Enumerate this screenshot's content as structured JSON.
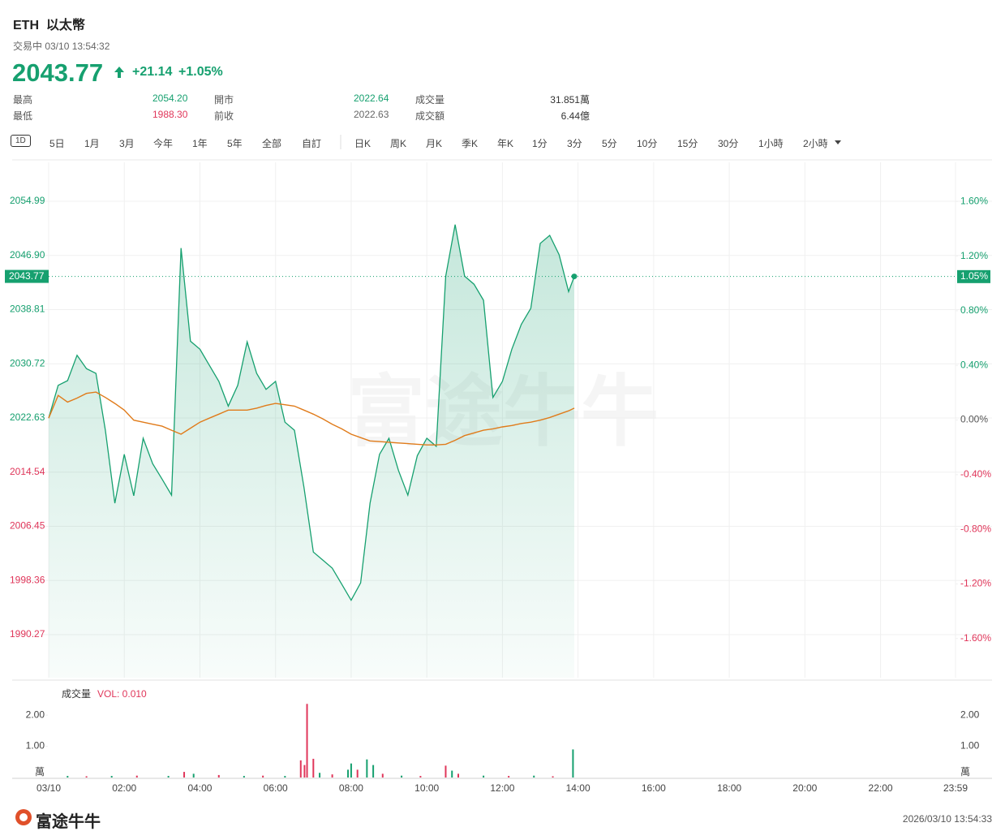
{
  "header": {
    "symbol": "ETH",
    "name": "以太幣",
    "status": "交易中 03/10 13:54:32",
    "price": "2043.77",
    "change": "+21.14",
    "change_pct": "+1.05%",
    "stats": [
      [
        {
          "label": "最高",
          "value": "2054.20"
        },
        {
          "label": "開市",
          "value": "2022.64"
        },
        {
          "label": "成交量",
          "value": "31.851萬"
        }
      ],
      [
        {
          "label": "最低",
          "value": "1988.30"
        },
        {
          "label": "前收",
          "value": "2022.63"
        },
        {
          "label": "成交額",
          "value": "6.44億"
        }
      ]
    ]
  },
  "tabs": [
    "1D",
    "5日",
    "1月",
    "3月",
    "今年",
    "1年",
    "5年",
    "全部",
    "自訂",
    "日K",
    "周K",
    "月K",
    "季K",
    "年K",
    "1分",
    "3分",
    "5分",
    "10分",
    "15分",
    "30分",
    "1小時",
    "2小時"
  ],
  "chart_data": [
    {
      "type": "line",
      "watermark": "富途牛牛",
      "grid": true,
      "x": [
        "00:00",
        "00:15",
        "00:30",
        "00:45",
        "01:00",
        "01:15",
        "01:30",
        "01:45",
        "02:00",
        "02:15",
        "02:30",
        "02:45",
        "03:00",
        "03:15",
        "03:30",
        "03:45",
        "04:00",
        "04:15",
        "04:30",
        "04:45",
        "05:00",
        "05:15",
        "05:30",
        "05:45",
        "06:00",
        "06:15",
        "06:30",
        "06:45",
        "07:00",
        "07:15",
        "07:30",
        "07:45",
        "08:00",
        "08:15",
        "08:30",
        "08:45",
        "09:00",
        "09:15",
        "09:30",
        "09:45",
        "10:00",
        "10:15",
        "10:30",
        "10:45",
        "11:00",
        "11:15",
        "11:30",
        "11:45",
        "12:00",
        "12:15",
        "12:30",
        "12:45",
        "13:00",
        "13:15",
        "13:30",
        "13:45",
        "13:54"
      ],
      "xlim": [
        "00:00",
        "23:59"
      ],
      "ylim": [
        1983.84,
        2060.81
      ],
      "yticks": [
        1990.27,
        1998.36,
        2006.45,
        2014.54,
        2022.63,
        2030.72,
        2038.81,
        {
          "value": 2046.9,
          "label": "2046.90"
        },
        2054.99
      ],
      "y2lim": [
        -1.887,
        1.887
      ],
      "y2ticks": [
        {
          "value": -1.6,
          "label": "-1.60%"
        },
        {
          "value": -1.2,
          "label": "-1.20%"
        },
        {
          "value": -0.8,
          "label": "-0.80%"
        },
        {
          "value": -0.4,
          "label": "-0.40%"
        },
        {
          "value": 0,
          "label": "0.00%"
        },
        {
          "value": 0.4,
          "label": "0.40%"
        },
        {
          "value": 0.8,
          "label": "0.80%"
        },
        {
          "value": 1.2,
          "label": "1.20%"
        },
        {
          "value": 1.6,
          "label": "1.60%"
        }
      ],
      "last": {
        "value": 2043.77,
        "change": 1.05,
        "change_label": "1.05%"
      },
      "series": [
        {
          "color": "#16a06f",
          "fill": true,
          "values": [
            2022.6,
            2027.5,
            2028.2,
            2032.0,
            2030.0,
            2029.3,
            2020.8,
            2009.9,
            2017.2,
            2011.0,
            2019.6,
            2015.8,
            2013.5,
            2011.1,
            2048.0,
            2034.1,
            2032.9,
            2030.5,
            2028.1,
            2024.4,
            2027.5,
            2034.0,
            2029.3,
            2026.9,
            2028.1,
            2022.0,
            2020.8,
            2012.3,
            2002.6,
            2001.4,
            2000.2,
            1997.8,
            1995.4,
            1998.0,
            2009.9,
            2017.2,
            2019.6,
            2014.8,
            2011.1,
            2017.0,
            2019.6,
            2018.4,
            2043.8,
            2051.5,
            2043.8,
            2042.6,
            2040.2,
            2025.7,
            2028.1,
            2032.9,
            2036.6,
            2039.0,
            2048.7,
            2049.9,
            2047.0,
            2041.5,
            2043.77
          ]
        },
        {
          "color": "#e07b1a",
          "fill": false,
          "values": [
            2022.6,
            2026.0,
            2025.0,
            2025.6,
            2026.3,
            2026.5,
            2025.7,
            2024.8,
            2023.8,
            2022.3,
            2022.0,
            2021.7,
            2021.4,
            2020.8,
            2020.2,
            2021.1,
            2022.0,
            2022.6,
            2023.2,
            2023.8,
            2023.8,
            2023.8,
            2024.1,
            2024.5,
            2024.8,
            2024.6,
            2024.4,
            2023.8,
            2023.2,
            2022.5,
            2021.7,
            2021.0,
            2020.2,
            2019.7,
            2019.2,
            2019.1,
            2019.0,
            2018.9,
            2018.8,
            2018.7,
            2018.6,
            2018.6,
            2018.7,
            2019.3,
            2020.0,
            2020.4,
            2020.8,
            2021.0,
            2021.3,
            2021.5,
            2021.8,
            2022.0,
            2022.3,
            2022.7,
            2023.2,
            2023.7,
            2024.1
          ]
        }
      ]
    },
    {
      "type": "bar",
      "title": "成交量",
      "subtitle": "VOL: 0.010",
      "unit": "萬",
      "x": [
        "00:30",
        "01:00",
        "01:40",
        "02:20",
        "03:10",
        "03:35",
        "03:50",
        "04:30",
        "05:10",
        "05:40",
        "06:15",
        "06:40",
        "06:46",
        "06:50",
        "07:00",
        "07:10",
        "07:30",
        "07:55",
        "08:00",
        "08:10",
        "08:25",
        "08:35",
        "08:50",
        "09:20",
        "09:50",
        "10:30",
        "10:40",
        "10:50",
        "11:30",
        "12:10",
        "12:50",
        "13:20",
        "13:52"
      ],
      "values": [
        0.05,
        0.04,
        0.05,
        0.06,
        0.05,
        0.18,
        0.12,
        0.08,
        0.05,
        0.06,
        0.05,
        0.55,
        0.4,
        2.36,
        0.6,
        0.15,
        0.1,
        0.25,
        0.45,
        0.25,
        0.58,
        0.4,
        0.12,
        0.06,
        0.05,
        0.38,
        0.22,
        0.12,
        0.06,
        0.05,
        0.06,
        0.04,
        0.9
      ],
      "colors": [
        "#16a06f",
        "#e0365a",
        "#16a06f",
        "#e0365a",
        "#16a06f",
        "#e0365a",
        "#16a06f",
        "#e0365a",
        "#16a06f",
        "#e0365a",
        "#16a06f",
        "#e0365a",
        "#e0365a",
        "#e0365a",
        "#e0365a",
        "#16a06f",
        "#e0365a",
        "#16a06f",
        "#16a06f",
        "#e0365a",
        "#16a06f",
        "#16a06f",
        "#e0365a",
        "#16a06f",
        "#e0365a",
        "#e0365a",
        "#16a06f",
        "#e0365a",
        "#16a06f",
        "#e0365a",
        "#16a06f",
        "#e0365a",
        "#16a06f"
      ],
      "xlim": [
        "00:00",
        "23:59"
      ],
      "xticks": [
        {
          "value": "00:00",
          "label": "03/10"
        },
        "02:00",
        "04:00",
        "06:00",
        "08:00",
        "10:00",
        "12:00",
        "14:00",
        "16:00",
        "18:00",
        "20:00",
        "22:00",
        "23:59"
      ],
      "ylim": [
        0,
        2.94
      ],
      "yticks": [
        {
          "value": 1,
          "label": "1.00"
        },
        {
          "value": 2,
          "label": "2.00"
        }
      ]
    }
  ],
  "footer": {
    "logo": "富途牛牛",
    "timestamp": "2026/03/10 13:54:33"
  }
}
